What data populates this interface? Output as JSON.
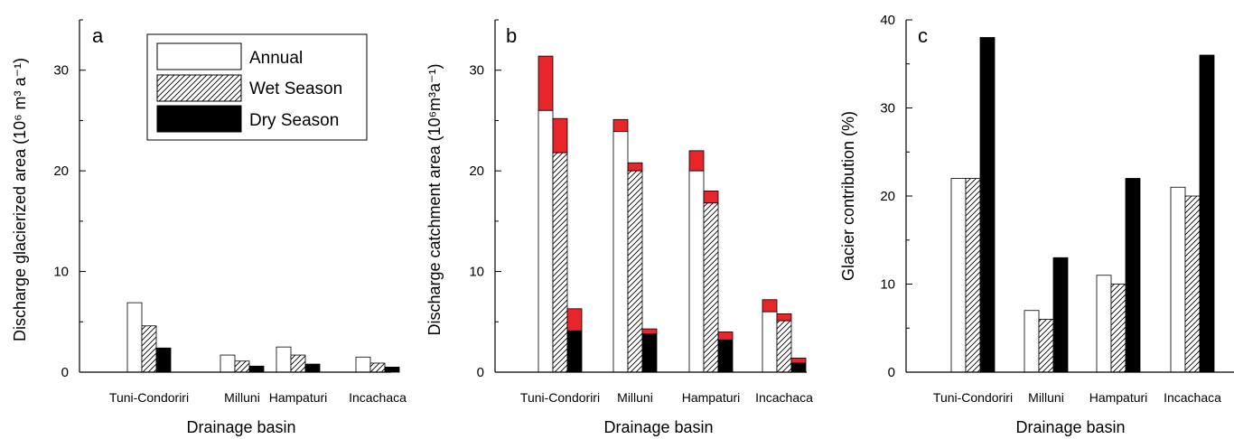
{
  "figure": {
    "legend": {
      "items": [
        {
          "label": "Annual",
          "pattern": "white"
        },
        {
          "label": "Wet Season",
          "pattern": "hatch"
        },
        {
          "label": "Dry Season",
          "pattern": "black"
        }
      ]
    },
    "colors": {
      "annual_fill": "#ffffff",
      "dry_fill": "#000000",
      "extra_fill": "#e8262a",
      "axis": "#000000"
    }
  },
  "chart_data": [
    {
      "type": "bar",
      "panel_letter": "a",
      "title": "",
      "xlabel": "Drainage basin",
      "ylabel": "Discharge glacierized area (10⁶ m³ a⁻¹)",
      "ylim": [
        0,
        35
      ],
      "yticks": [
        0,
        10,
        20,
        30
      ],
      "categories": [
        "Tuni-Condoriri",
        "Milluni",
        "Hampaturi",
        "Incachaca"
      ],
      "legend_placement": "top-center",
      "series": [
        {
          "name": "Annual",
          "values": [
            6.9,
            1.7,
            2.5,
            1.5
          ]
        },
        {
          "name": "Wet Season",
          "values": [
            4.6,
            1.1,
            1.7,
            0.9
          ]
        },
        {
          "name": "Dry Season",
          "values": [
            2.4,
            0.6,
            0.8,
            0.5
          ]
        }
      ]
    },
    {
      "type": "bar",
      "panel_letter": "b",
      "title": "",
      "xlabel": "Drainage basin",
      "ylabel": "Discharge catchment area (10⁶m³a⁻¹)",
      "ylim": [
        0,
        35
      ],
      "yticks": [
        0,
        10,
        20,
        30
      ],
      "categories": [
        "Tuni-Condoriri",
        "Milluni",
        "Hampaturi",
        "Incachaca"
      ],
      "stacked_top_color": "#e8262a",
      "series": [
        {
          "name": "Annual",
          "values": [
            26.0,
            23.9,
            20.0,
            6.0
          ],
          "stack_totals": [
            31.4,
            25.1,
            22.0,
            7.2
          ]
        },
        {
          "name": "Wet Season",
          "values": [
            21.8,
            20.0,
            16.8,
            5.1
          ],
          "stack_totals": [
            25.2,
            20.8,
            18.0,
            5.8
          ]
        },
        {
          "name": "Dry Season",
          "values": [
            4.1,
            3.8,
            3.2,
            0.9
          ],
          "stack_totals": [
            6.3,
            4.3,
            4.0,
            1.4
          ]
        }
      ]
    },
    {
      "type": "bar",
      "panel_letter": "c",
      "title": "",
      "xlabel": "Drainage basin",
      "ylabel": "Glacier contribution (%)",
      "ylim": [
        0,
        40
      ],
      "yticks": [
        0,
        10,
        20,
        30,
        40
      ],
      "categories": [
        "Tuni-Condoriri",
        "Milluni",
        "Hampaturi",
        "Incachaca"
      ],
      "series": [
        {
          "name": "Annual",
          "values": [
            22,
            7,
            11,
            21
          ]
        },
        {
          "name": "Wet Season",
          "values": [
            22,
            6,
            10,
            20
          ]
        },
        {
          "name": "Dry Season",
          "values": [
            38,
            13,
            22,
            36
          ]
        }
      ]
    }
  ]
}
